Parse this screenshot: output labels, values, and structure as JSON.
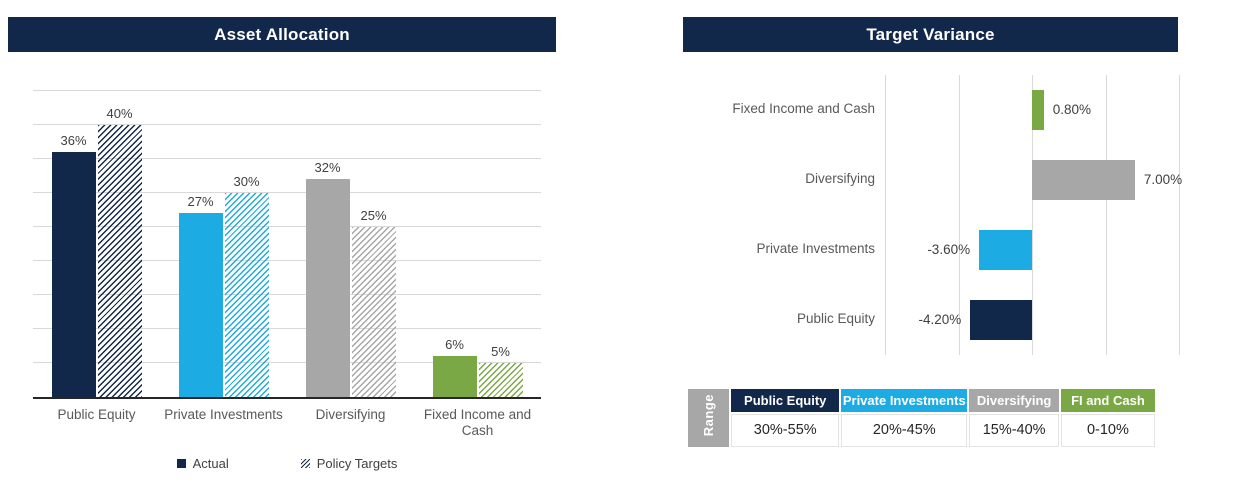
{
  "colors": {
    "navy": "#12284B",
    "blue": "#1CABE2",
    "gray": "#A7A7A7",
    "green": "#7AA844",
    "grid": "#D9D9D9",
    "axis": "#262626",
    "data_label": "#404040",
    "category_label": "#595959",
    "range_cell_bg": "#A7A7A7"
  },
  "left_panel": {
    "title": "Asset Allocation"
  },
  "right_panel": {
    "title": "Target Variance",
    "range_table": {
      "row_label": "Range",
      "columns": [
        {
          "header": "Public Equity",
          "value": "30%-55%",
          "color": "#12284B"
        },
        {
          "header": "Private Investments",
          "value": "20%-45%",
          "color": "#1CABE2"
        },
        {
          "header": "Diversifying",
          "value": "15%-40%",
          "color": "#A7A7A7"
        },
        {
          "header": "FI and Cash",
          "value": "0-10%",
          "color": "#7AA844"
        }
      ]
    }
  },
  "chart_data": [
    {
      "type": "bar",
      "title": "Asset Allocation",
      "categories": [
        "Public Equity",
        "Private Investments",
        "Diversifying",
        "Fixed Income and Cash"
      ],
      "series": [
        {
          "name": "Actual",
          "fill": "solid",
          "values": [
            36,
            27,
            32,
            6
          ],
          "labels": [
            "36%",
            "27%",
            "32%",
            "6%"
          ]
        },
        {
          "name": "Policy Targets",
          "fill": "hatch",
          "values": [
            40,
            30,
            25,
            5
          ],
          "labels": [
            "40%",
            "30%",
            "25%",
            "5%"
          ]
        }
      ],
      "category_colors": [
        "#12284B",
        "#1CABE2",
        "#A7A7A7",
        "#7AA844"
      ],
      "ylim": [
        0,
        45
      ],
      "grid_step": 5,
      "y_tick_labels_visible": false,
      "grid": true,
      "legend_position": "bottom"
    },
    {
      "type": "bar-horizontal",
      "title": "Target Variance",
      "categories": [
        "Fixed Income and Cash",
        "Diversifying",
        "Private Investments",
        "Public Equity"
      ],
      "values": [
        0.8,
        7.0,
        -3.6,
        -4.2
      ],
      "labels": [
        "0.80%",
        "7.00%",
        "-3.60%",
        "-4.20%"
      ],
      "bar_colors": [
        "#7AA844",
        "#A7A7A7",
        "#1CABE2",
        "#12284B"
      ],
      "xlim": [
        -10,
        10
      ],
      "grid_step": 5,
      "x_tick_labels_visible": false,
      "grid": true
    }
  ]
}
